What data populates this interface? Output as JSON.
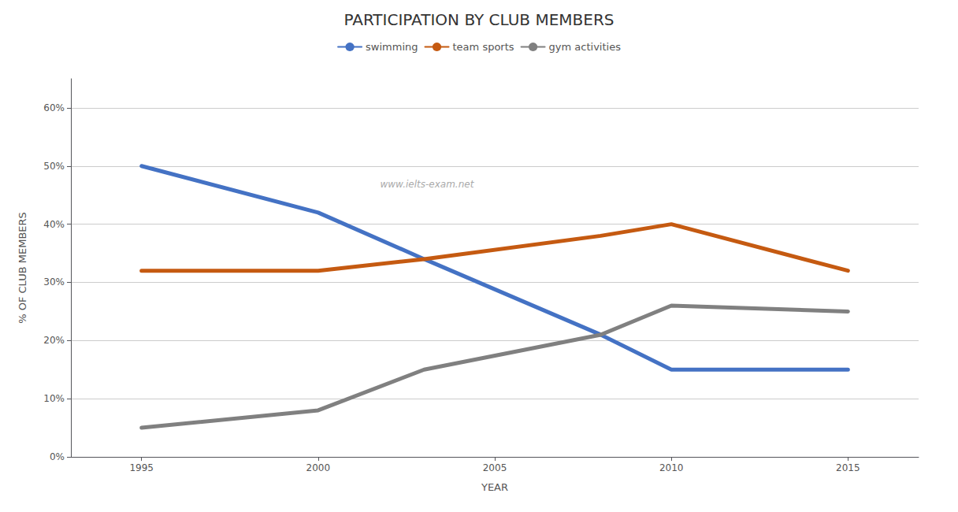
{
  "chart_data": {
    "type": "line",
    "title": "PARTICIPATION BY CLUB MEMBERS",
    "xlabel": "YEAR",
    "ylabel": "% OF CLUB MEMBERS",
    "annotation": "www.ielts-exam.net",
    "x": [
      1995,
      2000,
      2003,
      2008,
      2010,
      2015
    ],
    "series": [
      {
        "name": "swimming",
        "color": "#4472C4",
        "values": [
          50,
          42,
          34,
          21,
          15,
          15
        ]
      },
      {
        "name": "team sports",
        "color": "#C55A11",
        "values": [
          32,
          32,
          34,
          38,
          40,
          32
        ]
      },
      {
        "name": "gym activities",
        "color": "#808080",
        "values": [
          5,
          8,
          15,
          21,
          26,
          25
        ]
      }
    ],
    "xlim": [
      1993,
      2017
    ],
    "xticks": [
      1995,
      2000,
      2005,
      2010,
      2015
    ],
    "ylim": [
      0,
      65
    ],
    "yticks": [
      {
        "value": 0,
        "label": "0%"
      },
      {
        "value": 10,
        "label": "10%"
      },
      {
        "value": 20,
        "label": "20%"
      },
      {
        "value": 30,
        "label": "30%"
      },
      {
        "value": 40,
        "label": "40%"
      },
      {
        "value": 50,
        "label": "50%"
      },
      {
        "value": 60,
        "label": "60%"
      }
    ],
    "grid": true,
    "legend": "top"
  }
}
